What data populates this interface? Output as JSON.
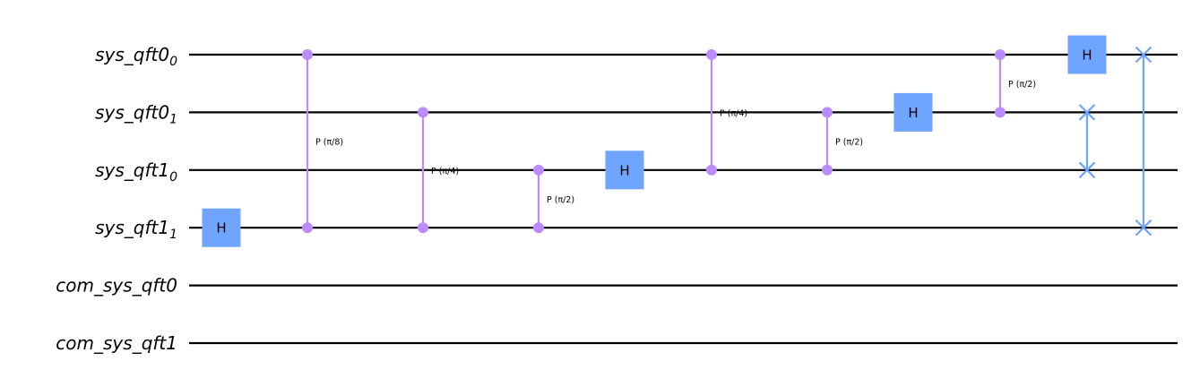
{
  "colors": {
    "wire": "#000000",
    "h_gate": "#6fa4ff",
    "controlled_phase": "#bb8bff",
    "swap": "#6fa4ff"
  },
  "qubits": [
    {
      "name": "sys_qft0",
      "sub": "0"
    },
    {
      "name": "sys_qft0",
      "sub": "1"
    },
    {
      "name": "sys_qft1",
      "sub": "0"
    },
    {
      "name": "sys_qft1",
      "sub": "1"
    },
    {
      "name": "com_sys_qft0",
      "sub": ""
    },
    {
      "name": "com_sys_qft1",
      "sub": ""
    }
  ],
  "gates": [
    {
      "type": "H",
      "label": "H",
      "wire": 3,
      "col": 0
    },
    {
      "type": "CP",
      "label": "P (π/8)",
      "wires": [
        0,
        3
      ],
      "col": 1
    },
    {
      "type": "CP",
      "label": "P (π/4)",
      "wires": [
        1,
        3
      ],
      "col": 2
    },
    {
      "type": "CP",
      "label": "P (π/2)",
      "wires": [
        2,
        3
      ],
      "col": 3
    },
    {
      "type": "H",
      "label": "H",
      "wire": 2,
      "col": 4
    },
    {
      "type": "CP",
      "label": "P (π/4)",
      "wires": [
        0,
        2
      ],
      "col": 5
    },
    {
      "type": "CP",
      "label": "P (π/2)",
      "wires": [
        1,
        2
      ],
      "col": 6
    },
    {
      "type": "H",
      "label": "H",
      "wire": 1,
      "col": 7
    },
    {
      "type": "CP",
      "label": "P (π/2)",
      "wires": [
        0,
        1
      ],
      "col": 8
    },
    {
      "type": "H",
      "label": "H",
      "wire": 0,
      "col": 9
    },
    {
      "type": "SWAP",
      "wires": [
        1,
        2
      ],
      "col": 9
    },
    {
      "type": "SWAP",
      "wires": [
        0,
        3
      ],
      "col": 10
    }
  ]
}
